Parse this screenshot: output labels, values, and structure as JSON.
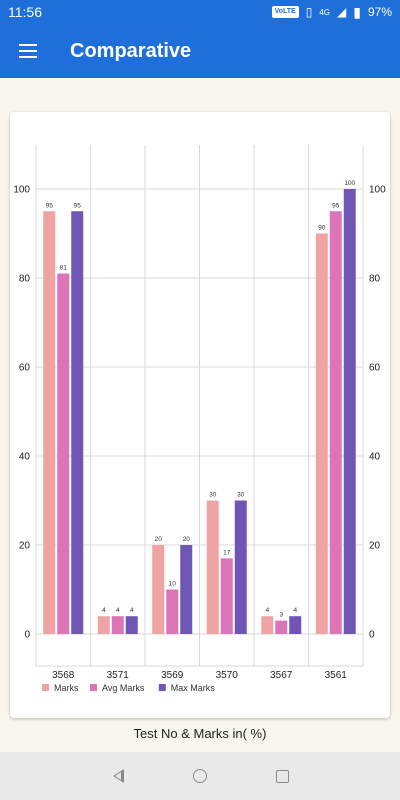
{
  "status": {
    "time": "11:56",
    "volte": "VoLTE",
    "network": "4G",
    "battery": "97%"
  },
  "app_bar": {
    "title": "Comparative"
  },
  "caption": "Test No & Marks in( %)",
  "colors": {
    "marks": "#f0a3a3",
    "avg": "#dc74b8",
    "max": "#6f56b4",
    "primary": "#1e6fd9"
  },
  "chart_data": {
    "type": "bar",
    "categories": [
      "3568",
      "3571",
      "3569",
      "3570",
      "3567",
      "3561"
    ],
    "series": [
      {
        "name": "Marks",
        "values": [
          95,
          4,
          20,
          30,
          4,
          90
        ]
      },
      {
        "name": "Avg Marks",
        "values": [
          81,
          4,
          10,
          17,
          3,
          95
        ]
      },
      {
        "name": "Max Marks",
        "values": [
          95,
          4,
          20,
          30,
          4,
          100
        ]
      }
    ],
    "ylim": [
      0,
      100
    ],
    "yticks": [
      "0",
      "20",
      "40",
      "60",
      "80",
      "100"
    ],
    "grid": true,
    "legend": "bottom-left"
  }
}
